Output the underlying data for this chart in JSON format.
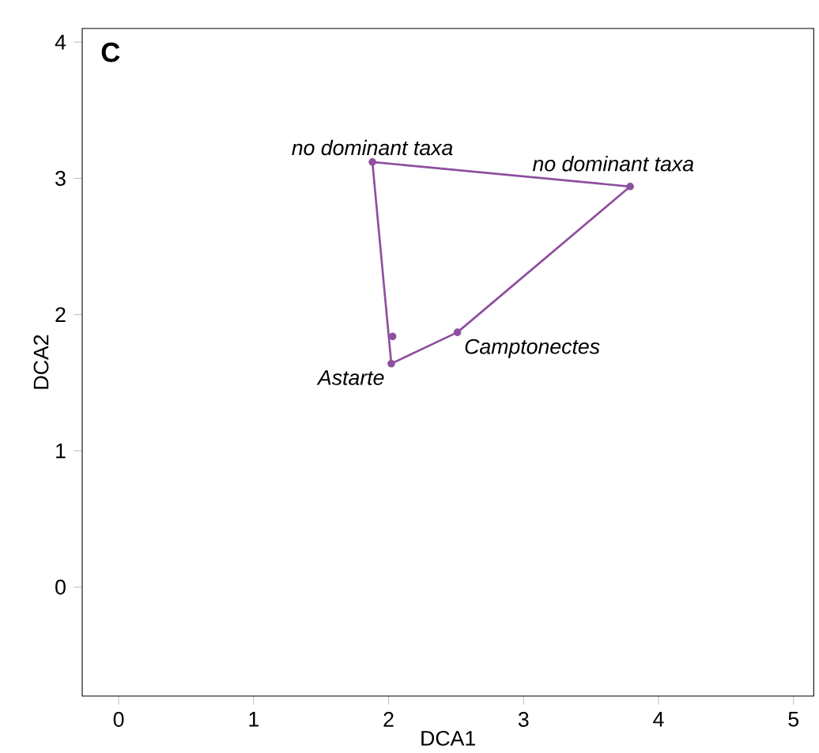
{
  "chart_data": {
    "type": "scatter",
    "title": "C",
    "xlabel": "DCA1",
    "ylabel": "DCA2",
    "xlim": [
      -0.27,
      5.15
    ],
    "ylim": [
      -0.8,
      4.1
    ],
    "xticks": [
      0,
      1,
      2,
      3,
      4,
      5
    ],
    "yticks": [
      0,
      1,
      2,
      3,
      4
    ],
    "marker": "circle",
    "series": [
      {
        "type": "line",
        "color": "#8e4f9e",
        "x": [
          1.88,
          3.79
        ],
        "values": [
          3.12,
          2.94
        ],
        "marker": "none",
        "line_style": "solid"
      },
      {
        "type": "line",
        "color": "#8e4f9e",
        "x": [
          1.88,
          2.02,
          2.51,
          3.79
        ],
        "values": [
          3.12,
          1.64,
          1.87,
          2.94
        ],
        "marker": "none",
        "line_style": "solid"
      },
      {
        "type": "scatter",
        "color": "#8e4f9e",
        "x": [
          1.88,
          3.79,
          2.51,
          2.02,
          2.03
        ],
        "values": [
          3.12,
          2.94,
          1.87,
          1.64,
          1.84
        ]
      }
    ],
    "annotations": [
      {
        "text": "no dominant taxa",
        "x": 1.88,
        "y": 3.12
      },
      {
        "text": "no dominant taxa",
        "x": 3.79,
        "y": 2.94
      },
      {
        "text": "Camptonectes",
        "x": 2.51,
        "y": 1.87
      },
      {
        "text": "Astarte",
        "x": 2.02,
        "y": 1.64
      }
    ]
  }
}
